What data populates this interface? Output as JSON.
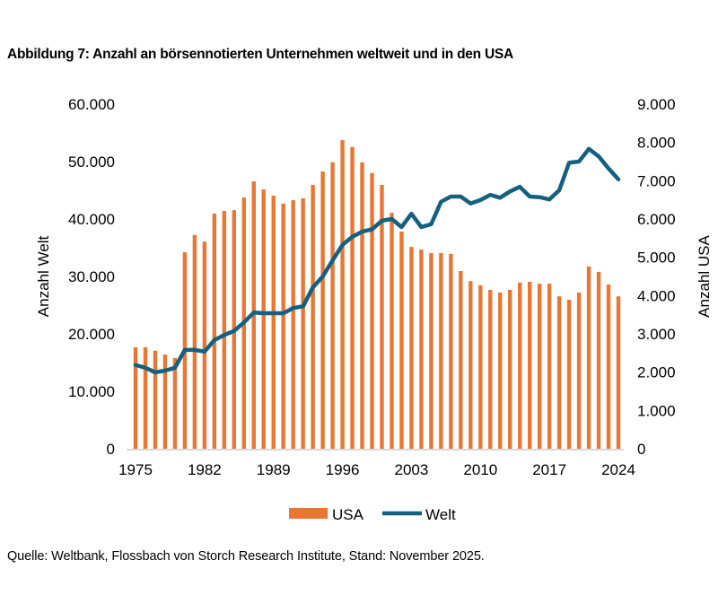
{
  "title": "Abbildung 7: Anzahl an börsennotierten Unternehmen weltweit und in den USA",
  "source": "Quelle: Weltbank, Flossbach von Storch Research Institute, Stand: November 2025.",
  "chart_data": {
    "type": "bar+line",
    "title": "Abbildung 7: Anzahl an börsennotierten Unternehmen weltweit und in den USA",
    "xlabel": "",
    "ylabel_left": "Anzahl Welt",
    "ylabel_right": "Anzahl USA",
    "ylim_left": [
      0,
      60000
    ],
    "ylim_right": [
      0,
      9000
    ],
    "yticks_left": [
      "0",
      "10.000",
      "20.000",
      "30.000",
      "40.000",
      "50.000",
      "60.000"
    ],
    "yticks_right": [
      "0",
      "1.000",
      "2.000",
      "3.000",
      "4.000",
      "5.000",
      "6.000",
      "7.000",
      "8.000",
      "9.000"
    ],
    "xticks": [
      "1975",
      "1982",
      "1989",
      "1996",
      "2003",
      "2010",
      "2017",
      "2024"
    ],
    "grid": false,
    "legend_placement": "bottom",
    "x": [
      1975,
      1976,
      1977,
      1978,
      1979,
      1980,
      1981,
      1982,
      1983,
      1984,
      1985,
      1986,
      1987,
      1988,
      1989,
      1990,
      1991,
      1992,
      1993,
      1994,
      1995,
      1996,
      1997,
      1998,
      1999,
      2000,
      2001,
      2002,
      2003,
      2004,
      2005,
      2006,
      2007,
      2008,
      2009,
      2010,
      2011,
      2012,
      2013,
      2014,
      2015,
      2016,
      2017,
      2018,
      2019,
      2020,
      2021,
      2022,
      2023,
      2024
    ],
    "series": [
      {
        "name": "USA",
        "type": "bar",
        "axis": "right",
        "color": "#E97733",
        "values": [
          2650,
          2650,
          2560,
          2460,
          2370,
          5130,
          5580,
          5410,
          6140,
          6210,
          6230,
          6560,
          6980,
          6770,
          6610,
          6400,
          6490,
          6540,
          6890,
          7240,
          7480,
          8060,
          7880,
          7480,
          7200,
          6890,
          6160,
          5670,
          5270,
          5200,
          5110,
          5110,
          5090,
          4640,
          4380,
          4270,
          4150,
          4080,
          4150,
          4340,
          4360,
          4310,
          4310,
          3980,
          3890,
          4080,
          4760,
          4620,
          4290,
          3980
        ]
      },
      {
        "name": "Welt",
        "type": "line",
        "axis": "left",
        "color": "#16607F",
        "values": [
          14600,
          14100,
          13300,
          13600,
          14100,
          17200,
          17200,
          16900,
          18900,
          19800,
          20500,
          22000,
          23700,
          23600,
          23600,
          23600,
          24500,
          24800,
          28100,
          30000,
          32800,
          35500,
          36900,
          37800,
          38200,
          39700,
          40000,
          38600,
          40900,
          38600,
          39100,
          43000,
          43900,
          43900,
          42700,
          43300,
          44200,
          43700,
          44800,
          45600,
          43900,
          43800,
          43400,
          45000,
          49800,
          50000,
          52200,
          50900,
          48800,
          46900
        ]
      }
    ]
  }
}
